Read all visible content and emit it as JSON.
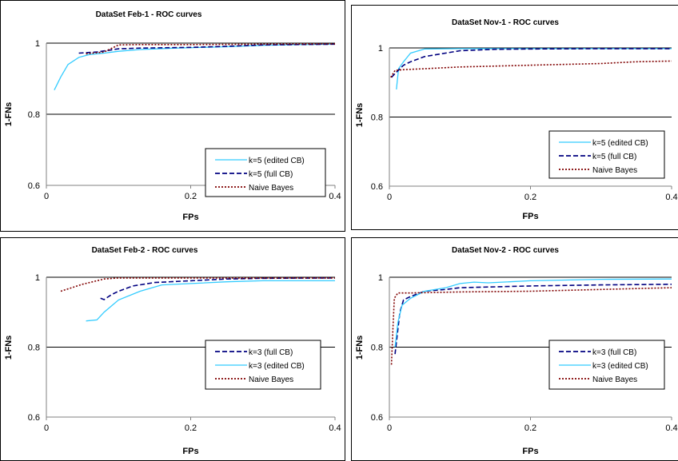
{
  "chart_data": [
    {
      "type": "line",
      "title": "DataSet Feb-1 - ROC curves",
      "xlabel": "FPs",
      "ylabel": "1-FNs",
      "xlim": [
        0,
        0.4
      ],
      "ylim": [
        0.6,
        1
      ],
      "x_ticks": [
        "0",
        "0.2",
        "0.4"
      ],
      "y_ticks": [
        "0.6",
        "0.8",
        "1"
      ],
      "grid": "horizontal",
      "legend_position": "bottom-right",
      "series": [
        {
          "name": "k=5 (edited CB)",
          "color": "#33ccff",
          "dash": "solid",
          "points": [
            [
              0.011,
              0.868
            ],
            [
              0.02,
              0.905
            ],
            [
              0.03,
              0.94
            ],
            [
              0.045,
              0.96
            ],
            [
              0.06,
              0.968
            ],
            [
              0.08,
              0.972
            ],
            [
              0.1,
              0.977
            ],
            [
              0.13,
              0.982
            ],
            [
              0.18,
              0.986
            ],
            [
              0.25,
              0.99
            ],
            [
              0.3,
              0.994
            ],
            [
              0.35,
              0.996
            ],
            [
              0.4,
              0.997
            ]
          ]
        },
        {
          "name": "k=5 (full CB)",
          "color": "#000080",
          "dash": "dashed",
          "points": [
            [
              0.045,
              0.972
            ],
            [
              0.07,
              0.975
            ],
            [
              0.1,
              0.984
            ],
            [
              0.13,
              0.986
            ],
            [
              0.2,
              0.988
            ],
            [
              0.25,
              0.991
            ],
            [
              0.3,
              0.995
            ],
            [
              0.4,
              0.997
            ]
          ]
        },
        {
          "name": "Naive Bayes",
          "color": "#800000",
          "dash": "dotted",
          "points": [
            [
              0.055,
              0.97
            ],
            [
              0.08,
              0.975
            ],
            [
              0.095,
              0.99
            ],
            [
              0.1,
              0.995
            ],
            [
              0.13,
              0.996
            ],
            [
              0.2,
              0.996
            ],
            [
              0.3,
              0.997
            ],
            [
              0.4,
              0.998
            ]
          ]
        }
      ]
    },
    {
      "type": "line",
      "title": "DataSet Nov-1 - ROC curves",
      "xlabel": "FPs",
      "ylabel": "1-FNs",
      "xlim": [
        0,
        0.4
      ],
      "ylim": [
        0.6,
        1
      ],
      "x_ticks": [
        "0",
        "0.2",
        "0.4"
      ],
      "y_ticks": [
        "0.6",
        "0.8",
        "1"
      ],
      "grid": "horizontal",
      "legend_position": "bottom-right",
      "series": [
        {
          "name": "k=5 (edited CB)",
          "color": "#33ccff",
          "dash": "solid",
          "points": [
            [
              0.01,
              0.88
            ],
            [
              0.013,
              0.94
            ],
            [
              0.02,
              0.96
            ],
            [
              0.03,
              0.985
            ],
            [
              0.05,
              0.997
            ],
            [
              0.1,
              0.998
            ],
            [
              0.2,
              0.998
            ],
            [
              0.3,
              0.998
            ],
            [
              0.4,
              0.998
            ]
          ]
        },
        {
          "name": "k=5 (full CB)",
          "color": "#000080",
          "dash": "dashed",
          "points": [
            [
              0.003,
              0.915
            ],
            [
              0.01,
              0.93
            ],
            [
              0.02,
              0.95
            ],
            [
              0.03,
              0.96
            ],
            [
              0.05,
              0.975
            ],
            [
              0.1,
              0.992
            ],
            [
              0.15,
              0.996
            ],
            [
              0.2,
              0.997
            ],
            [
              0.3,
              0.998
            ],
            [
              0.4,
              0.998
            ]
          ]
        },
        {
          "name": "Naive Bayes",
          "color": "#800000",
          "dash": "dotted",
          "points": [
            [
              0.002,
              0.915
            ],
            [
              0.008,
              0.935
            ],
            [
              0.02,
              0.937
            ],
            [
              0.05,
              0.94
            ],
            [
              0.1,
              0.945
            ],
            [
              0.2,
              0.95
            ],
            [
              0.3,
              0.955
            ],
            [
              0.35,
              0.96
            ],
            [
              0.4,
              0.962
            ]
          ]
        }
      ]
    },
    {
      "type": "line",
      "title": "DataSet Feb-2 - ROC curves",
      "xlabel": "FPs",
      "ylabel": "1-FNs",
      "xlim": [
        0,
        0.4
      ],
      "ylim": [
        0.6,
        1
      ],
      "x_ticks": [
        "0",
        "0.2",
        "0.4"
      ],
      "y_ticks": [
        "0.6",
        "0.8",
        "1"
      ],
      "grid": "horizontal",
      "legend_position": "bottom-right",
      "series": [
        {
          "name": "k=3 (full CB)",
          "color": "#000080",
          "dash": "dashed",
          "points": [
            [
              0.075,
              0.94
            ],
            [
              0.08,
              0.936
            ],
            [
              0.09,
              0.95
            ],
            [
              0.1,
              0.96
            ],
            [
              0.12,
              0.975
            ],
            [
              0.15,
              0.985
            ],
            [
              0.2,
              0.99
            ],
            [
              0.25,
              0.995
            ],
            [
              0.3,
              0.997
            ],
            [
              0.4,
              0.998
            ]
          ]
        },
        {
          "name": "k=3 (edited CB)",
          "color": "#33ccff",
          "dash": "solid",
          "points": [
            [
              0.055,
              0.875
            ],
            [
              0.07,
              0.878
            ],
            [
              0.08,
              0.9
            ],
            [
              0.1,
              0.935
            ],
            [
              0.13,
              0.96
            ],
            [
              0.16,
              0.978
            ],
            [
              0.2,
              0.982
            ],
            [
              0.25,
              0.987
            ],
            [
              0.3,
              0.99
            ],
            [
              0.35,
              0.99
            ],
            [
              0.4,
              0.99
            ]
          ]
        },
        {
          "name": "Naive Bayes",
          "color": "#800000",
          "dash": "dotted",
          "points": [
            [
              0.02,
              0.96
            ],
            [
              0.05,
              0.98
            ],
            [
              0.08,
              0.995
            ],
            [
              0.1,
              0.998
            ],
            [
              0.2,
              0.998
            ],
            [
              0.4,
              0.998
            ]
          ]
        }
      ]
    },
    {
      "type": "line",
      "title": "DataSet Nov-2 - ROC curves",
      "xlabel": "FPs",
      "ylabel": "1-FNs",
      "xlim": [
        0,
        0.4
      ],
      "ylim": [
        0.6,
        1
      ],
      "x_ticks": [
        "0",
        "0.2",
        "0.4"
      ],
      "y_ticks": [
        "0.6",
        "0.8",
        "1"
      ],
      "grid": "horizontal",
      "legend_position": "bottom-right",
      "series": [
        {
          "name": "k=3 (full CB)",
          "color": "#000080",
          "dash": "dashed",
          "points": [
            [
              0.008,
              0.78
            ],
            [
              0.012,
              0.85
            ],
            [
              0.015,
              0.9
            ],
            [
              0.02,
              0.935
            ],
            [
              0.03,
              0.945
            ],
            [
              0.05,
              0.96
            ],
            [
              0.08,
              0.965
            ],
            [
              0.1,
              0.97
            ],
            [
              0.2,
              0.975
            ],
            [
              0.3,
              0.978
            ],
            [
              0.4,
              0.98
            ]
          ]
        },
        {
          "name": "k=3 (edited CB)",
          "color": "#33ccff",
          "dash": "solid",
          "points": [
            [
              0.008,
              0.8
            ],
            [
              0.012,
              0.87
            ],
            [
              0.018,
              0.92
            ],
            [
              0.03,
              0.94
            ],
            [
              0.05,
              0.96
            ],
            [
              0.08,
              0.97
            ],
            [
              0.1,
              0.982
            ],
            [
              0.12,
              0.986
            ],
            [
              0.14,
              0.984
            ],
            [
              0.2,
              0.99
            ],
            [
              0.3,
              0.994
            ],
            [
              0.4,
              0.995
            ]
          ]
        },
        {
          "name": "Naive Bayes",
          "color": "#800000",
          "dash": "dotted",
          "points": [
            [
              0.003,
              0.75
            ],
            [
              0.005,
              0.85
            ],
            [
              0.007,
              0.94
            ],
            [
              0.012,
              0.955
            ],
            [
              0.03,
              0.955
            ],
            [
              0.1,
              0.958
            ],
            [
              0.2,
              0.96
            ],
            [
              0.3,
              0.965
            ],
            [
              0.4,
              0.97
            ]
          ]
        }
      ]
    }
  ]
}
